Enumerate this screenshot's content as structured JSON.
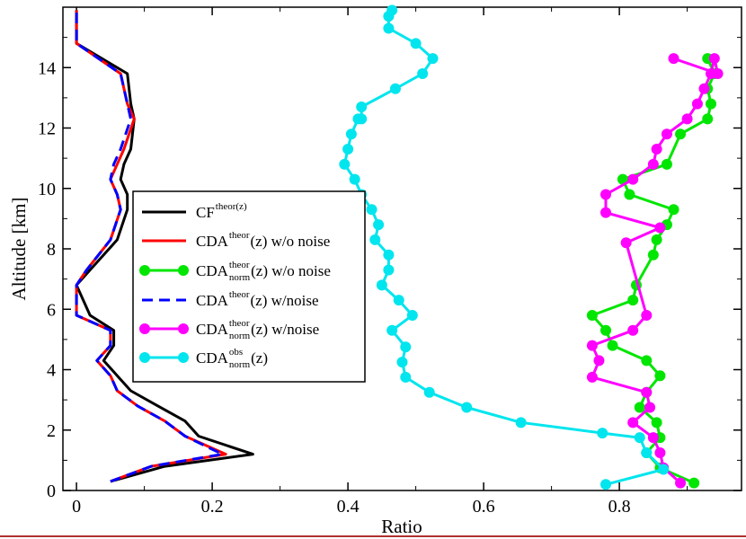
{
  "chart_data": {
    "type": "line",
    "xlabel": "Ratio",
    "ylabel": "Altitude [km]",
    "xlim": [
      -0.02,
      0.98
    ],
    "ylim": [
      0,
      16
    ],
    "xticks": [
      0,
      0.2,
      0.4,
      0.6,
      0.8
    ],
    "xtick_labels": [
      "0",
      "0.2",
      "0.4",
      "0.6",
      "0.8"
    ],
    "yticks": [
      0,
      2,
      4,
      6,
      8,
      10,
      12,
      14
    ],
    "ytick_labels": [
      "0",
      "2",
      "4",
      "6",
      "8",
      "10",
      "12",
      "14"
    ],
    "grid": false,
    "legend_position": "center-left",
    "series": [
      {
        "name": "CF^theor(z)",
        "legend": {
          "base": "CF",
          "sup": "theor(z)",
          "sub": "",
          "tail": ""
        },
        "color": "#000000",
        "style": "solid",
        "marker": false,
        "x": [
          0.05,
          0.13,
          0.26,
          0.18,
          0.16,
          0.12,
          0.08,
          0.06,
          0.04,
          0.055,
          0.055,
          0.02,
          0.0,
          0.02,
          0.06,
          0.075,
          0.075,
          0.065,
          0.07,
          0.08,
          0.085,
          0.08,
          0.075,
          0.0,
          0.0
        ],
        "y": [
          0.3,
          0.8,
          1.2,
          1.8,
          2.3,
          2.8,
          3.3,
          3.8,
          4.3,
          4.8,
          5.3,
          5.8,
          6.8,
          7.3,
          8.3,
          9.3,
          9.8,
          10.3,
          10.8,
          11.3,
          12.3,
          12.8,
          13.8,
          14.8,
          15.9
        ]
      },
      {
        "name": "CDA^theor(z) w/o noise",
        "legend": {
          "base": "CDA",
          "sup": "theor",
          "sub": "",
          "tail": "(z) w/o noise"
        },
        "color": "#ff0000",
        "style": "solid",
        "marker": false,
        "x": [
          0.05,
          0.11,
          0.22,
          0.16,
          0.13,
          0.09,
          0.06,
          0.05,
          0.03,
          0.05,
          0.05,
          0.0,
          0.0,
          0.015,
          0.05,
          0.065,
          0.06,
          0.05,
          0.06,
          0.07,
          0.085,
          0.075,
          0.065,
          0.0,
          0.0
        ],
        "y": [
          0.3,
          0.8,
          1.2,
          1.8,
          2.3,
          2.8,
          3.3,
          3.8,
          4.3,
          4.8,
          5.3,
          5.8,
          6.8,
          7.3,
          8.3,
          9.3,
          9.8,
          10.3,
          10.8,
          11.3,
          12.3,
          12.8,
          13.8,
          14.8,
          15.9
        ]
      },
      {
        "name": "CDA^theor_norm(z) w/o noise",
        "legend": {
          "base": "CDA",
          "sup": "theor",
          "sub": "norm",
          "tail": "(z) w/o noise"
        },
        "color": "#00e600",
        "style": "solid",
        "marker": true,
        "x": [
          0.91,
          0.86,
          0.84,
          0.86,
          0.855,
          0.83,
          0.84,
          0.86,
          0.84,
          0.79,
          0.78,
          0.76,
          0.82,
          0.825,
          0.85,
          0.855,
          0.87,
          0.88,
          0.815,
          0.805,
          0.87,
          0.89,
          0.93,
          0.935,
          0.93,
          0.94,
          0.93
        ],
        "y": [
          0.25,
          0.75,
          1.25,
          1.75,
          2.25,
          2.75,
          3.25,
          3.8,
          4.3,
          4.8,
          5.3,
          5.8,
          6.3,
          6.8,
          7.8,
          8.3,
          8.8,
          9.3,
          9.8,
          10.3,
          10.8,
          11.8,
          12.3,
          12.8,
          13.3,
          13.8,
          14.3
        ]
      },
      {
        "name": "CDA^theor(z) w/noise",
        "legend": {
          "base": "CDA",
          "sup": "theor",
          "sub": "",
          "tail": "(z) w/noise"
        },
        "color": "#0000ff",
        "style": "dashed",
        "marker": false,
        "x": [
          0.05,
          0.11,
          0.215,
          0.16,
          0.13,
          0.09,
          0.06,
          0.05,
          0.03,
          0.05,
          0.05,
          0.0,
          0.0,
          0.015,
          0.05,
          0.065,
          0.06,
          0.05,
          0.055,
          0.065,
          0.08,
          0.075,
          0.065,
          0.0,
          0.0
        ],
        "y": [
          0.3,
          0.8,
          1.2,
          1.8,
          2.3,
          2.8,
          3.3,
          3.8,
          4.3,
          4.8,
          5.3,
          5.8,
          6.8,
          7.3,
          8.3,
          9.3,
          9.8,
          10.3,
          10.8,
          11.3,
          12.3,
          12.8,
          13.8,
          14.8,
          15.9
        ]
      },
      {
        "name": "CDA^theor_norm(z) w/noise",
        "legend": {
          "base": "CDA",
          "sup": "theor",
          "sub": "norm",
          "tail": "(z) w/noise"
        },
        "color": "#ff00ff",
        "style": "solid",
        "marker": true,
        "x": [
          0.89,
          0.865,
          0.86,
          0.85,
          0.82,
          0.845,
          0.84,
          0.76,
          0.77,
          0.76,
          0.82,
          0.84,
          0.81,
          0.86,
          0.78,
          0.78,
          0.82,
          0.85,
          0.855,
          0.87,
          0.9,
          0.915,
          0.925,
          0.935,
          0.94,
          0.945,
          0.88
        ],
        "y": [
          0.25,
          0.75,
          1.25,
          1.75,
          2.25,
          2.75,
          3.25,
          3.75,
          4.3,
          4.8,
          5.3,
          5.8,
          8.2,
          8.7,
          9.2,
          9.8,
          10.3,
          10.8,
          11.3,
          11.8,
          12.3,
          12.8,
          13.3,
          13.8,
          14.3,
          13.8,
          14.3
        ]
      },
      {
        "name": "CDA^obs_norm(z)",
        "legend": {
          "base": "CDA",
          "sup": "obs",
          "sub": "norm",
          "tail": "(z)"
        },
        "color": "#00e5ee",
        "style": "solid",
        "marker": true,
        "x": [
          0.78,
          0.865,
          0.84,
          0.83,
          0.775,
          0.655,
          0.575,
          0.52,
          0.485,
          0.48,
          0.485,
          0.465,
          0.495,
          0.475,
          0.45,
          0.46,
          0.46,
          0.44,
          0.445,
          0.435,
          0.42,
          0.41,
          0.395,
          0.4,
          0.405,
          0.415,
          0.42,
          0.42,
          0.47,
          0.51,
          0.525,
          0.5,
          0.46,
          0.46,
          0.465
        ],
        "y": [
          0.2,
          0.7,
          1.25,
          1.75,
          1.9,
          2.25,
          2.75,
          3.25,
          3.75,
          4.25,
          4.75,
          5.3,
          5.8,
          6.3,
          6.8,
          7.3,
          7.8,
          8.3,
          8.8,
          9.3,
          9.8,
          10.3,
          10.8,
          11.3,
          11.8,
          12.3,
          12.3,
          12.7,
          13.3,
          13.8,
          14.3,
          14.8,
          15.3,
          15.7,
          15.9
        ]
      }
    ]
  }
}
